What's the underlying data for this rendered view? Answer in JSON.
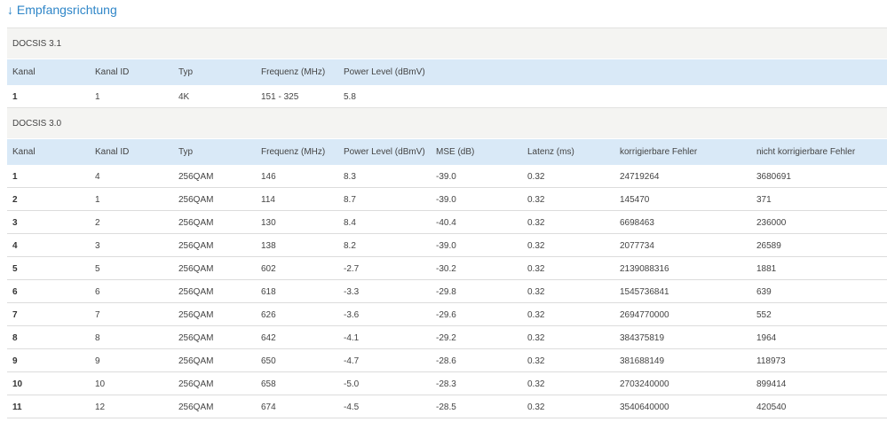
{
  "header": {
    "title": "↓ Empfangsrichtung"
  },
  "sections": [
    {
      "name": "DOCSIS 3.1",
      "columns": [
        "Kanal",
        "Kanal ID",
        "Typ",
        "Frequenz (MHz)",
        "Power Level (dBmV)"
      ],
      "rows": [
        [
          "1",
          "1",
          "4K",
          "151 - 325",
          "5.8"
        ]
      ]
    },
    {
      "name": "DOCSIS 3.0",
      "columns": [
        "Kanal",
        "Kanal ID",
        "Typ",
        "Frequenz (MHz)",
        "Power Level (dBmV)",
        "MSE (dB)",
        "Latenz (ms)",
        "korrigierbare Fehler",
        "nicht korrigierbare Fehler"
      ],
      "rows": [
        [
          "1",
          "4",
          "256QAM",
          "146",
          "8.3",
          "-39.0",
          "0.32",
          "24719264",
          "3680691"
        ],
        [
          "2",
          "1",
          "256QAM",
          "114",
          "8.7",
          "-39.0",
          "0.32",
          "145470",
          "371"
        ],
        [
          "3",
          "2",
          "256QAM",
          "130",
          "8.4",
          "-40.4",
          "0.32",
          "6698463",
          "236000"
        ],
        [
          "4",
          "3",
          "256QAM",
          "138",
          "8.2",
          "-39.0",
          "0.32",
          "2077734",
          "26589"
        ],
        [
          "5",
          "5",
          "256QAM",
          "602",
          "-2.7",
          "-30.2",
          "0.32",
          "2139088316",
          "1881"
        ],
        [
          "6",
          "6",
          "256QAM",
          "618",
          "-3.3",
          "-29.8",
          "0.32",
          "1545736841",
          "639"
        ],
        [
          "7",
          "7",
          "256QAM",
          "626",
          "-3.6",
          "-29.6",
          "0.32",
          "2694770000",
          "552"
        ],
        [
          "8",
          "8",
          "256QAM",
          "642",
          "-4.1",
          "-29.2",
          "0.32",
          "384375819",
          "1964"
        ],
        [
          "9",
          "9",
          "256QAM",
          "650",
          "-4.7",
          "-28.6",
          "0.32",
          "381688149",
          "118973"
        ],
        [
          "10",
          "10",
          "256QAM",
          "658",
          "-5.0",
          "-28.3",
          "0.32",
          "2703240000",
          "899414"
        ],
        [
          "11",
          "12",
          "256QAM",
          "674",
          "-4.5",
          "-28.5",
          "0.32",
          "3540640000",
          "420540"
        ]
      ]
    }
  ]
}
